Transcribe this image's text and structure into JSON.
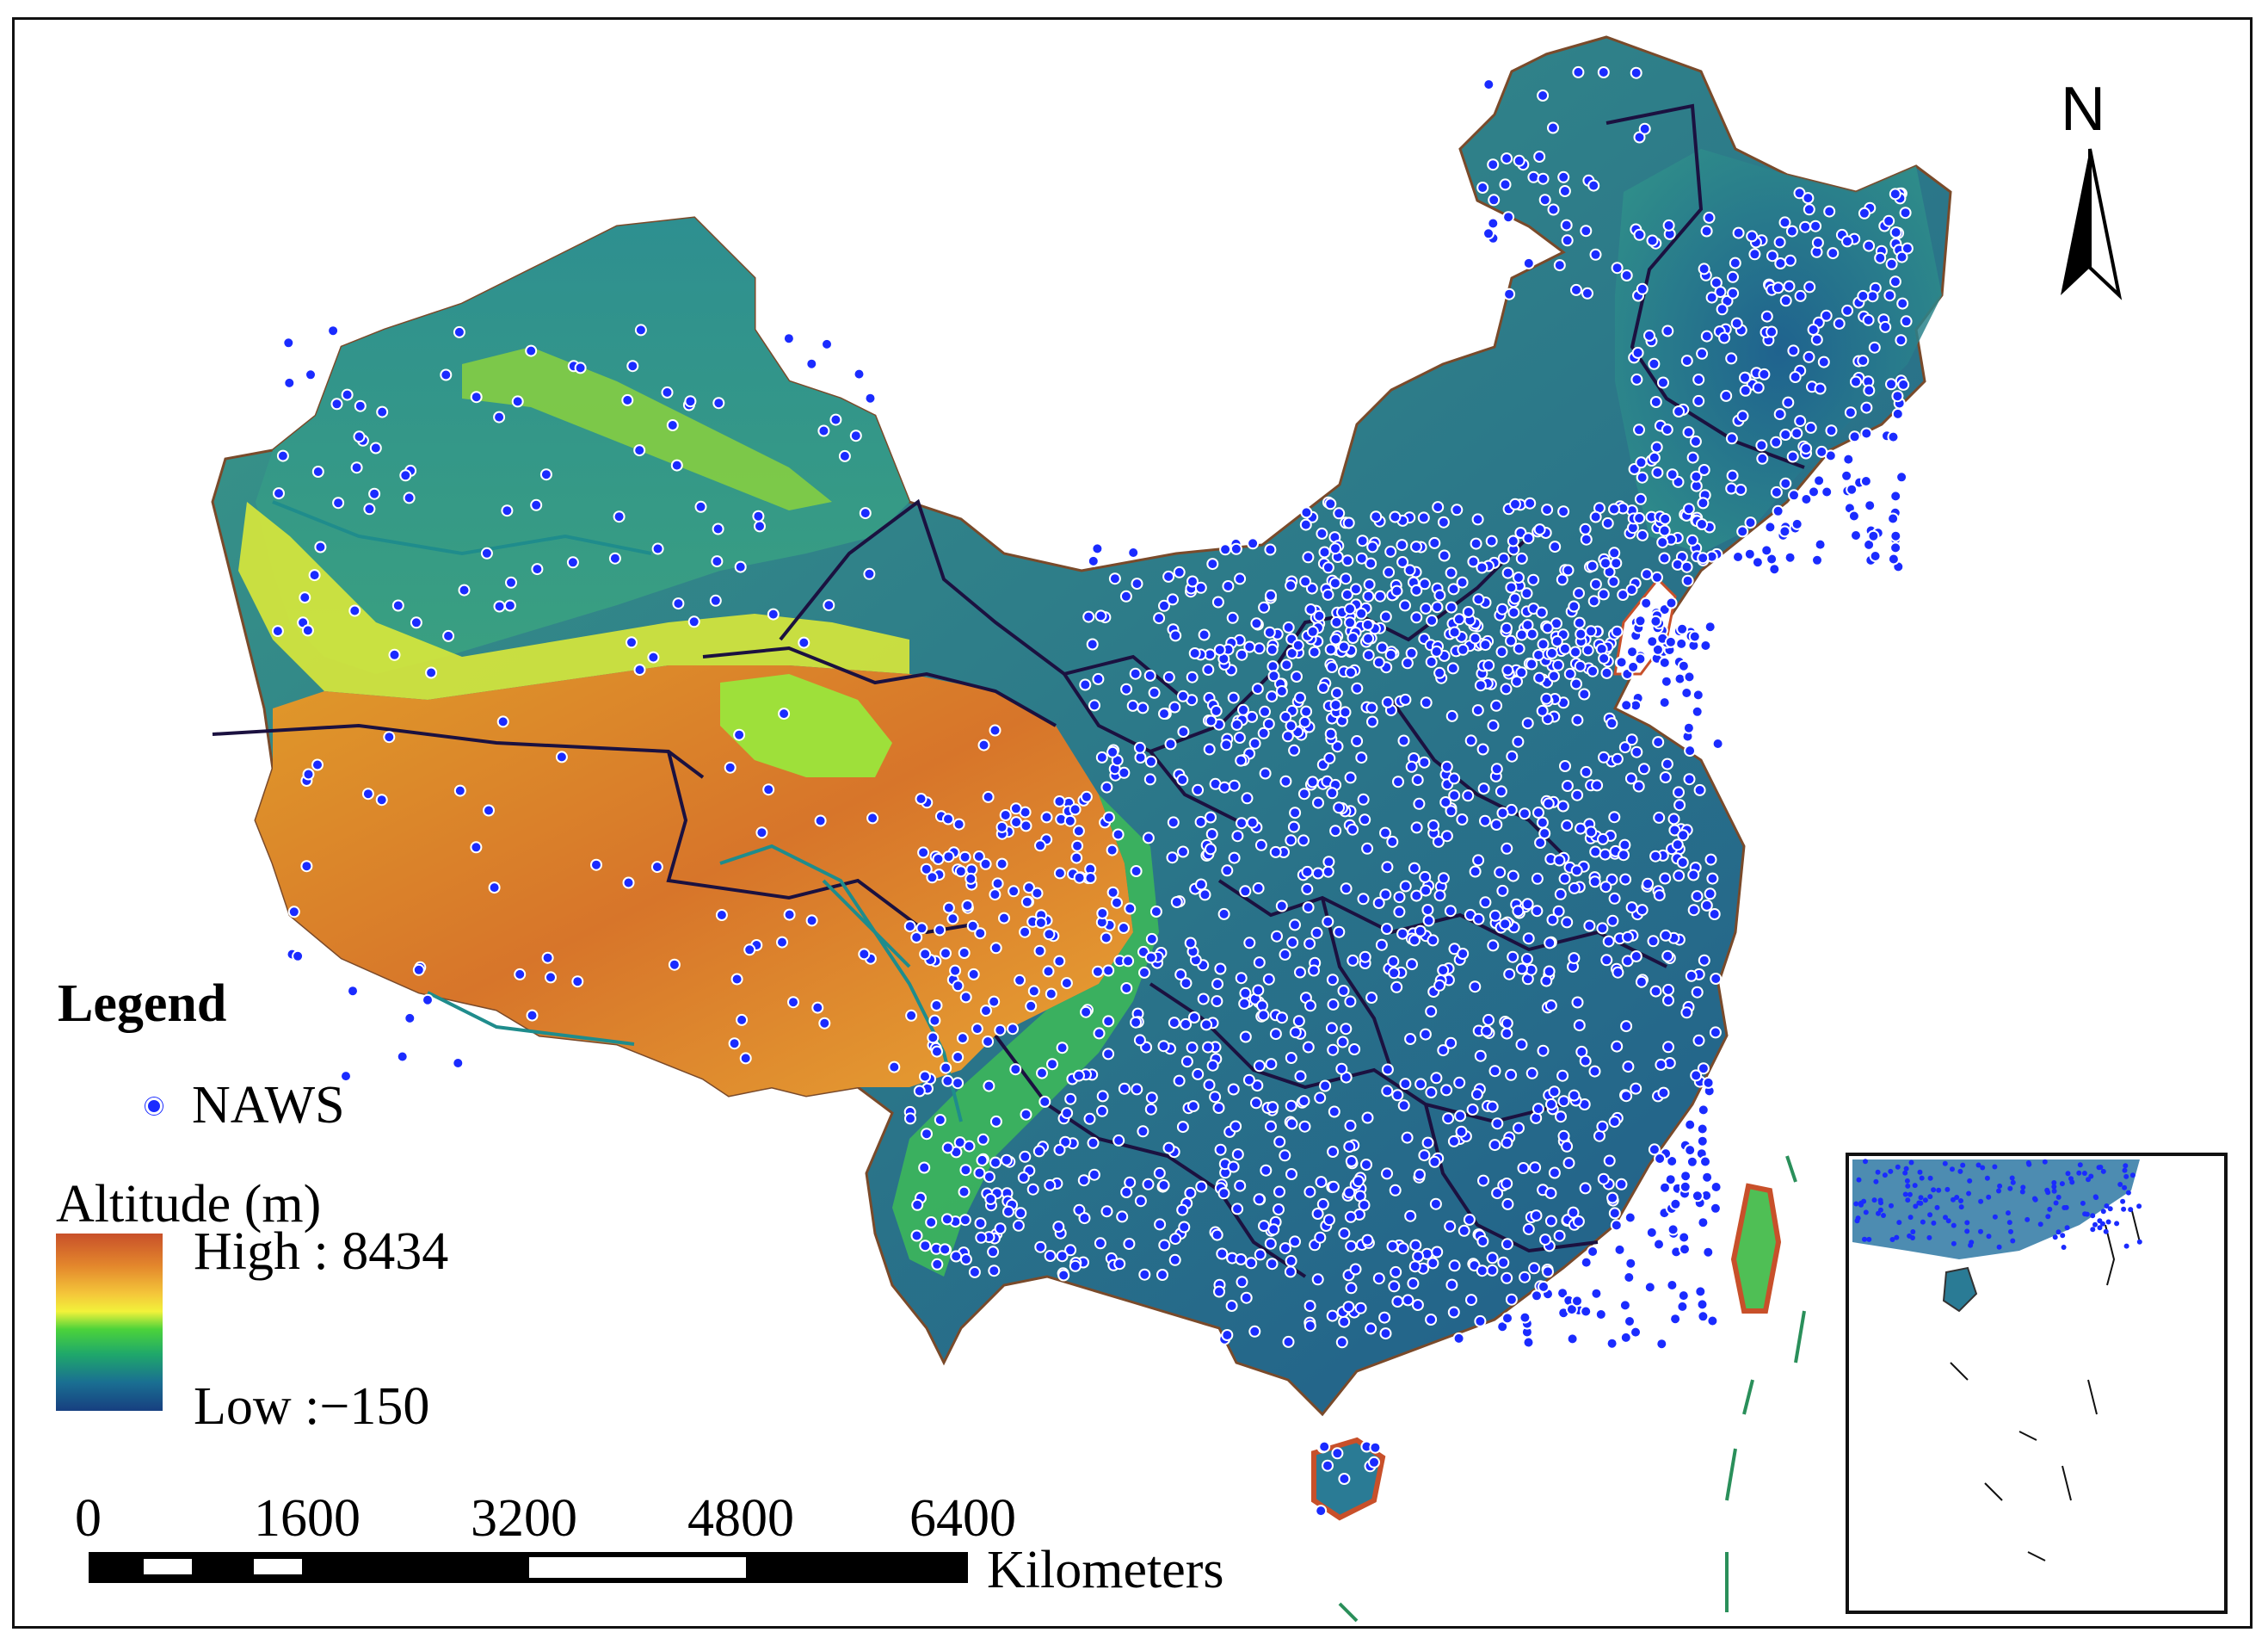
{
  "legend": {
    "title": "Legend",
    "naws_label": "NAWS",
    "altitude_title": "Altitude (m)",
    "high_label": "High : 8434",
    "low_label": "Low :−150"
  },
  "scale_bar": {
    "ticks": [
      "0",
      "1600",
      "3200",
      "4800",
      "6400"
    ],
    "unit": "Kilometers"
  },
  "north_arrow": {
    "letter": "N"
  },
  "colors": {
    "station": "#1a2bff",
    "ramp_high": "#c8502a",
    "ramp_mid": "#f2f23a",
    "ramp_low": "#173f80",
    "boundary": "#1b1140",
    "river": "#1f8c8c"
  }
}
